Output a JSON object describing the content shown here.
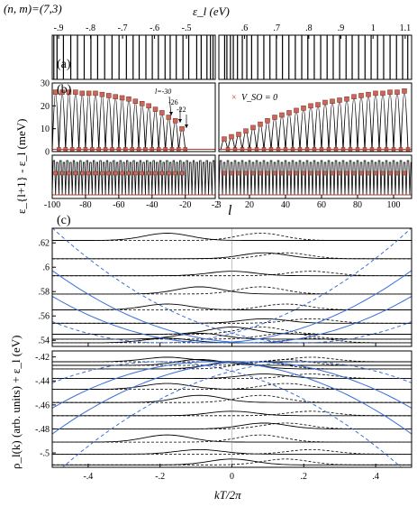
{
  "chart_data": [
    {
      "id": "a",
      "type": "line",
      "panel_label": "(a)",
      "figure_label": "(n, m)=(7,3)",
      "top_axis_label": "ε_l (eV)",
      "left": {
        "xlim": [
          -0.92,
          -0.41
        ],
        "xticks": [
          -0.9,
          -0.8,
          -0.7,
          -0.6,
          -0.5
        ],
        "levels": [
          -0.915,
          -0.905,
          -0.885,
          -0.862,
          -0.841,
          -0.82,
          -0.799,
          -0.778,
          -0.756,
          -0.733,
          -0.711,
          -0.688,
          -0.667,
          -0.648,
          -0.627,
          -0.607,
          -0.588,
          -0.567,
          -0.551,
          -0.532,
          -0.511,
          -0.493,
          -0.468,
          -0.454,
          -0.436,
          -0.425,
          -0.417
        ]
      },
      "right": {
        "xlim": [
          0.52,
          1.12
        ],
        "xticks": [
          0.6,
          0.7,
          0.8,
          0.9,
          1.0,
          1.1
        ],
        "levels": [
          0.538,
          0.545,
          0.556,
          0.565,
          0.578,
          0.593,
          0.607,
          0.622,
          0.641,
          0.66,
          0.679,
          0.699,
          0.718,
          0.738,
          0.758,
          0.778,
          0.797,
          0.817,
          0.837,
          0.857,
          0.876,
          0.896,
          0.916,
          0.935,
          0.955,
          0.975,
          0.994,
          1.014,
          1.033,
          1.053,
          1.073,
          1.092,
          1.108
        ]
      }
    },
    {
      "id": "b",
      "type": "scatter",
      "panel_label": "(b)",
      "ylabel": "ε_{l+1} - ε_l (meV)",
      "xlabel": "l",
      "legend": "V_SO = 0",
      "annotations": [
        "l=-30",
        "-26",
        "-22"
      ],
      "upper_ylim": [
        0,
        30
      ],
      "upper_yticks": [
        0,
        10,
        20,
        30
      ],
      "left": {
        "xlim": [
          -100,
          -2
        ],
        "xticks": [
          -100,
          -80,
          -60,
          -40,
          -20,
          -2
        ],
        "peak_x": [
          -98,
          -94,
          -90,
          -86,
          -82,
          -78,
          -74,
          -70,
          -66,
          -62,
          -58,
          -54,
          -50,
          -46,
          -42,
          -38,
          -34,
          -30,
          -26,
          -22
        ],
        "peak_y": [
          26,
          26,
          26,
          26,
          25.5,
          25.5,
          25.5,
          25,
          24.5,
          24,
          23.5,
          23,
          22,
          21,
          20,
          18.5,
          17,
          15,
          13.5,
          10
        ],
        "baseline": 1
      },
      "right": {
        "xlim": [
          3,
          110
        ],
        "xticks": [
          3,
          20,
          40,
          60,
          80,
          100
        ],
        "peak_x": [
          6,
          10,
          14,
          18,
          22,
          26,
          30,
          34,
          38,
          42,
          46,
          50,
          54,
          58,
          62,
          66,
          70,
          74,
          78,
          82,
          86,
          90,
          94,
          98,
          102,
          106
        ],
        "peak_y": [
          5.5,
          6.5,
          7.5,
          9,
          10.5,
          12,
          13.5,
          15,
          16,
          17,
          18,
          19,
          20,
          20.5,
          21.5,
          22,
          22.5,
          23,
          24,
          24.5,
          25,
          25.5,
          25.5,
          26,
          26,
          26.5
        ],
        "baseline": 1
      }
    },
    {
      "id": "c",
      "type": "line",
      "panel_label": "(c)",
      "ylabel": "ρ_l(k) (arb. units) + ε_l (eV)",
      "xlabel": "kT/2π",
      "xlim": [
        -0.5,
        0.5
      ],
      "xticks": [
        -0.4,
        -0.2,
        0,
        0.2,
        0.4
      ],
      "upper": {
        "ylim": [
          0.535,
          0.632
        ],
        "yticks": [
          0.54,
          0.56,
          0.58,
          0.6,
          0.62
        ],
        "levels": [
          0.538,
          0.541,
          0.545,
          0.554,
          0.565,
          0.578,
          0.593,
          0.607,
          0.622
        ]
      },
      "lower": {
        "ylim": [
          -0.512,
          -0.415
        ],
        "yticks": [
          -0.5,
          -0.48,
          -0.46,
          -0.44,
          -0.42
        ],
        "levels": [
          -0.424,
          -0.427,
          -0.43,
          -0.438,
          -0.447,
          -0.458,
          -0.469,
          -0.48,
          -0.491,
          -0.501,
          -0.51
        ]
      }
    }
  ]
}
